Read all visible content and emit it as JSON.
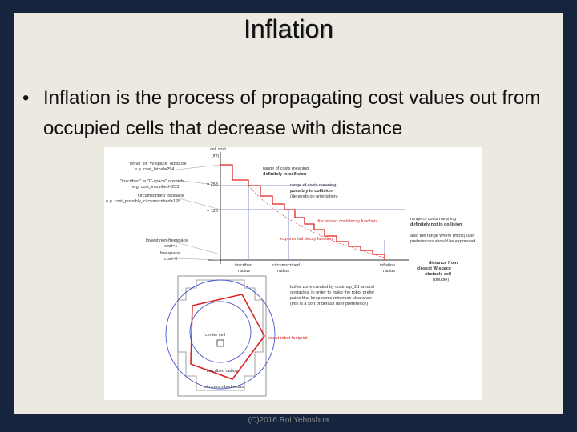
{
  "slide": {
    "title": "Inflation",
    "bullet": "Inflation is the process of propagating cost values out from occupied cells that decrease with distance",
    "footer": "(C)2016 Roi Yehoshua"
  },
  "diagram": {
    "labels": [
      "cell cost",
      "(int)",
      "\"lethal\" or \"W-space\" obstacle",
      "e.g. cost_lethal=254",
      "\"inscribed\" or \"C-space\" obstacle",
      "e.g. cost_inscribed=253",
      "\"circumscribed\" obstacle",
      "e.g. cost_possibly_circumscribed=128",
      "lowest non-freespace",
      "cost=1",
      "freespace",
      "cost=0",
      "range of costs meaning",
      "definitely in collision",
      "range of costs meaning",
      "possibly in collision",
      "(depends on orientation)",
      "range of costs meaning",
      "definitely not in collision",
      "also the range where (most) user",
      "preferences should be expressed",
      "discretized cost/decay function",
      "exponential decay function",
      "inscribed",
      "radius",
      "circumscribed",
      "radius",
      "inflation",
      "radius",
      "distance from",
      "closest W-space",
      "obstacle cell",
      "(double)",
      "buffer zone created by costmap_2d around",
      "obstacles, in order to make the robot prefer",
      "paths that keep some minimum clearance",
      "(this is a sort of default user preference)",
      "center cell",
      "inscribed radius",
      "circumscribed radius",
      "exact robot footprint",
      "= 253",
      "= 128"
    ]
  }
}
